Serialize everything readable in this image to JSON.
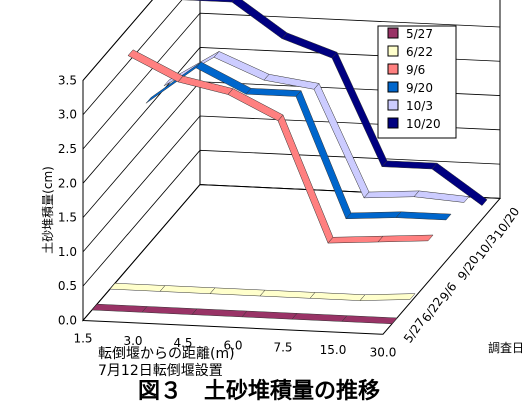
{
  "chart_data": {
    "type": "line",
    "chart_subtype": "3d-line",
    "categories": [
      "1.5",
      "3.0",
      "4.5",
      "6.0",
      "7.5",
      "15.0",
      "30.0"
    ],
    "xlabel": "転倒堰からの距離(m)",
    "ylabel": "土砂堆積量(cm)",
    "zlabel": "調査日",
    "ylim": [
      0,
      3.5
    ],
    "yticks": [
      "0.0",
      "0.5",
      "1.0",
      "1.5",
      "2.0",
      "2.5",
      "3.0",
      "3.5"
    ],
    "grid": true,
    "legend_position": "top-right",
    "series": [
      {
        "name": "5/27",
        "color": "#993366",
        "values": [
          0.0,
          0.0,
          0.0,
          0.0,
          0.0,
          0.0,
          0.0
        ]
      },
      {
        "name": "6/22",
        "color": "#ffffcc",
        "values": [
          0.0,
          0.0,
          0.0,
          0.0,
          0.0,
          0.0,
          0.05
        ]
      },
      {
        "name": "9/6",
        "color": "#ff8080",
        "values": [
          3.1,
          2.75,
          2.6,
          2.25,
          0.5,
          0.55,
          0.6
        ]
      },
      {
        "name": "9/20",
        "color": "#0066cc",
        "values": [
          2.1,
          2.65,
          2.3,
          2.3,
          0.55,
          0.6,
          0.6
        ]
      },
      {
        "name": "10/3",
        "color": "#ccccff",
        "values": [
          2.05,
          2.5,
          2.2,
          2.1,
          0.55,
          0.6,
          0.55
        ]
      },
      {
        "name": "10/20",
        "color": "#000080",
        "values": [
          3.0,
          3.0,
          2.5,
          2.25,
          0.7,
          0.7,
          0.2
        ]
      }
    ]
  },
  "notes": {
    "xlabel": "転倒堰からの距離(m)",
    "install_date": "7月12日転倒堰設置",
    "caption": "図３　土砂堆積量の推移"
  }
}
